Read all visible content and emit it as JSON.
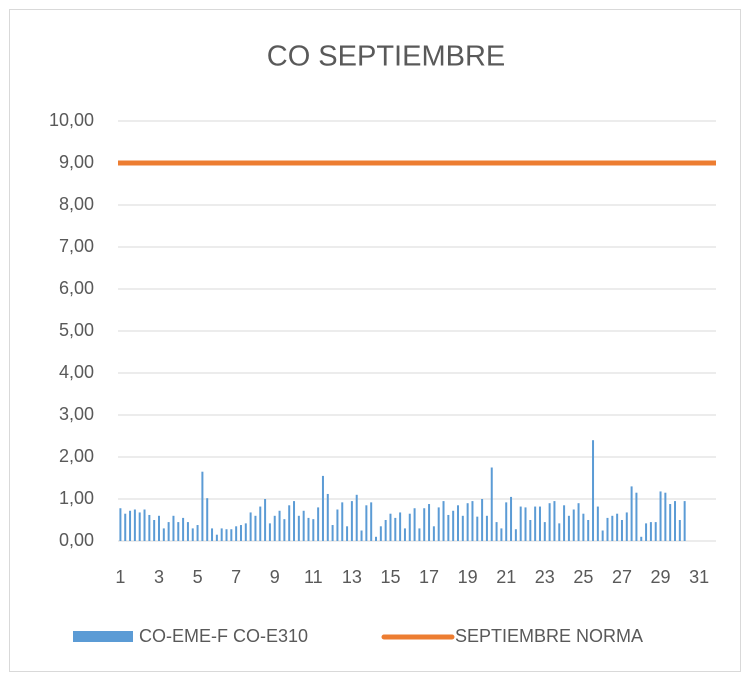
{
  "chart_data": {
    "type": "bar",
    "title": "CO SEPTIEMBRE",
    "categories": [
      "1",
      null,
      null,
      null,
      null,
      null,
      null,
      null,
      "3",
      null,
      null,
      null,
      null,
      null,
      null,
      null,
      "5",
      null,
      null,
      null,
      null,
      null,
      null,
      null,
      "7",
      null,
      null,
      null,
      null,
      null,
      null,
      null,
      "9",
      null,
      null,
      null,
      null,
      null,
      null,
      null,
      "11",
      null,
      null,
      null,
      null,
      null,
      null,
      null,
      "13",
      null,
      null,
      null,
      null,
      null,
      null,
      null,
      "15",
      null,
      null,
      null,
      null,
      null,
      null,
      null,
      "17",
      null,
      null,
      null,
      null,
      null,
      null,
      null,
      "19",
      null,
      null,
      null,
      null,
      null,
      null,
      null,
      "21",
      null,
      null,
      null,
      null,
      null,
      null,
      null,
      "23",
      null,
      null,
      null,
      null,
      null,
      null,
      null,
      "25",
      null,
      null,
      null,
      null,
      null,
      null,
      null,
      "27",
      null,
      null,
      null,
      null,
      null,
      null,
      null,
      "29",
      null,
      null,
      null,
      null,
      null,
      null,
      null,
      "31",
      null,
      null,
      null
    ],
    "series": [
      {
        "name": "CO-EME-F CO-E310",
        "type": "bar",
        "color": "#5b9bd5",
        "values": [
          0.78,
          0.65,
          0.72,
          0.75,
          0.68,
          0.75,
          0.62,
          0.5,
          0.6,
          0.3,
          0.45,
          0.6,
          0.45,
          0.55,
          0.45,
          0.3,
          0.38,
          1.65,
          1.02,
          0.3,
          0.15,
          0.3,
          0.28,
          0.28,
          0.35,
          0.38,
          0.42,
          0.68,
          0.6,
          0.82,
          1.0,
          0.42,
          0.6,
          0.72,
          0.52,
          0.85,
          0.95,
          0.6,
          0.72,
          0.55,
          0.52,
          0.8,
          1.55,
          1.12,
          0.38,
          0.75,
          0.92,
          0.35,
          0.95,
          1.1,
          0.25,
          0.85,
          0.92,
          0.1,
          0.35,
          0.5,
          0.65,
          0.55,
          0.68,
          0.3,
          0.65,
          0.78,
          0.3,
          0.78,
          0.88,
          0.35,
          0.8,
          0.95,
          0.62,
          0.72,
          0.85,
          0.6,
          0.9,
          0.95,
          0.58,
          1.0,
          0.6,
          1.75,
          0.45,
          0.3,
          0.92,
          1.05,
          0.28,
          0.82,
          0.8,
          0.5,
          0.82,
          0.82,
          0.45,
          0.9,
          0.95,
          0.42,
          0.85,
          0.6,
          0.75,
          0.9,
          0.65,
          0.5,
          2.4,
          0.82,
          0.25,
          0.55,
          0.6,
          0.65,
          0.5,
          0.68,
          1.3,
          1.15,
          0.1,
          0.42,
          0.45,
          0.45,
          1.18,
          1.15,
          0.88,
          0.95,
          0.5,
          0.95,
          null,
          null,
          null,
          null,
          null,
          null
        ]
      },
      {
        "name": "SEPTIEMBRE NORMA",
        "type": "line",
        "color": "#ed7d31",
        "values": [
          9,
          9,
          9,
          9,
          9,
          9,
          9,
          9,
          9,
          9,
          9,
          9,
          9,
          9,
          9,
          9,
          9,
          9,
          9,
          9,
          9,
          9,
          9,
          9,
          9,
          9,
          9,
          9,
          9,
          9,
          9,
          9,
          9,
          9,
          9,
          9,
          9,
          9,
          9,
          9,
          9,
          9,
          9,
          9,
          9,
          9,
          9,
          9,
          9,
          9,
          9,
          9,
          9,
          9,
          9,
          9,
          9,
          9,
          9,
          9,
          9,
          9,
          9,
          9,
          9,
          9,
          9,
          9,
          9,
          9,
          9,
          9,
          9,
          9,
          9,
          9,
          9,
          9,
          9,
          9,
          9,
          9,
          9,
          9,
          9,
          9,
          9,
          9,
          9,
          9,
          9,
          9,
          9,
          9,
          9,
          9,
          9,
          9,
          9,
          9,
          9,
          9,
          9,
          9,
          9,
          9,
          9,
          9,
          9,
          9,
          9,
          9,
          9,
          9,
          9,
          9,
          9,
          9,
          9,
          9,
          9,
          9,
          9,
          9
        ]
      }
    ],
    "ylim": [
      0,
      10
    ],
    "yticks": [
      {
        "value": 0,
        "label": "0,00"
      },
      {
        "value": 1,
        "label": "1,00"
      },
      {
        "value": 2,
        "label": "2,00"
      },
      {
        "value": 3,
        "label": "3,00"
      },
      {
        "value": 4,
        "label": "4,00"
      },
      {
        "value": 5,
        "label": "5,00"
      },
      {
        "value": 6,
        "label": "6,00"
      },
      {
        "value": 7,
        "label": "7,00"
      },
      {
        "value": 8,
        "label": "8,00"
      },
      {
        "value": 9,
        "label": "9,00"
      },
      {
        "value": 10,
        "label": "10,00"
      }
    ],
    "grid": true,
    "legend": "bottom"
  }
}
